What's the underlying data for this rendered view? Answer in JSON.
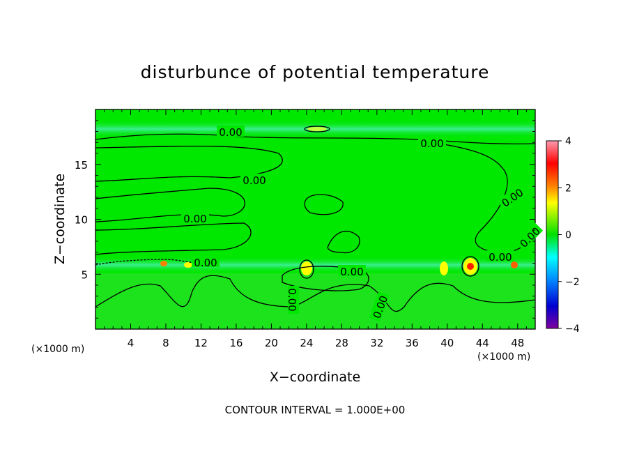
{
  "chart_data": {
    "type": "heatmap",
    "title": "disturbunce of potential temperature",
    "xlabel": "X−coordinate",
    "ylabel": "Z−coordinate",
    "x_unit": "(×1000 m)",
    "z_unit": "(×1000 m)",
    "xlim": [
      0,
      50
    ],
    "ylim": [
      0,
      20
    ],
    "x_ticks": [
      "4",
      "8",
      "12",
      "16",
      "20",
      "24",
      "28",
      "32",
      "36",
      "40",
      "44",
      "48"
    ],
    "y_ticks": [
      "5",
      "10",
      "15"
    ],
    "contour_labels": [
      "0.00",
      "0.00",
      "0.00",
      "0.00",
      "0.00",
      "0.00",
      "0.00",
      "0.00",
      "0.00",
      "0.00",
      "0.00"
    ],
    "colorbar": {
      "range": [
        -4,
        4
      ],
      "ticks": [
        "4",
        "2",
        "0",
        "−2",
        "−4"
      ],
      "colors": [
        "#ff9ab0",
        "#ff0000",
        "#ff8c00",
        "#ffff00",
        "#00e000",
        "#00ffff",
        "#0080ff",
        "#0000d0",
        "#8000a0"
      ]
    },
    "footer": "CONTOUR INTERVAL = 1.000E+00",
    "grid": false
  }
}
